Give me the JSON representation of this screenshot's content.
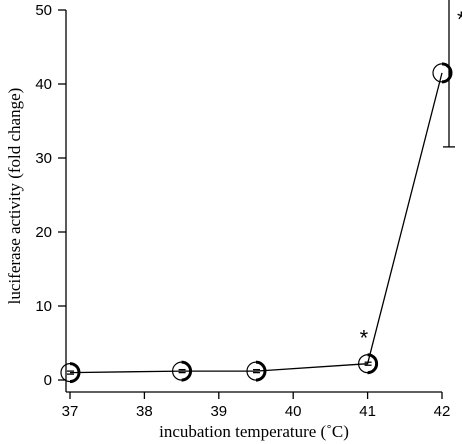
{
  "chart_data": {
    "type": "line",
    "xlabel": "incubation temperature (˚C)",
    "ylabel": "luciferase activity (fold change)",
    "xlim": [
      37,
      42
    ],
    "ylim": [
      0,
      50
    ],
    "xticks": [
      37,
      38,
      39,
      40,
      41,
      42
    ],
    "yticks": [
      0,
      10,
      20,
      30,
      40,
      50
    ],
    "grid": false,
    "series": [
      {
        "points": [
          {
            "x": 37,
            "y": 1.0,
            "err": 0.3,
            "significant": false
          },
          {
            "x": 38.5,
            "y": 1.2,
            "err": 0.3,
            "significant": false
          },
          {
            "x": 39.5,
            "y": 1.2,
            "err": 0.3,
            "significant": false
          },
          {
            "x": 41,
            "y": 2.2,
            "err": 0.5,
            "significant": true
          },
          {
            "x": 42,
            "y": 41.5,
            "err": 10.0,
            "significant": true
          }
        ]
      }
    ],
    "significance_marker": "*"
  }
}
